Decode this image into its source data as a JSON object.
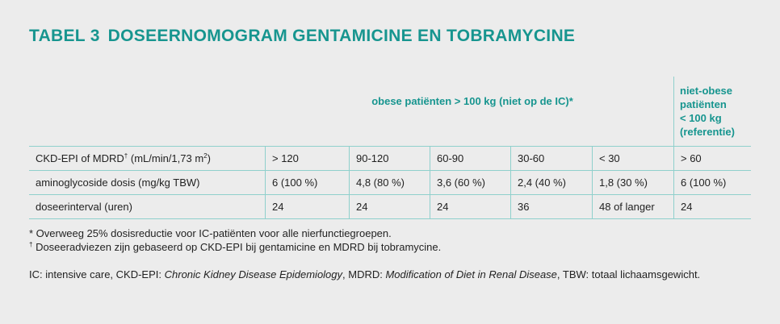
{
  "title": {
    "number": "TABEL 3",
    "text": "DOSEERNOMOGRAM GENTAMICINE EN TOBRAMYCINE"
  },
  "table": {
    "header_obese": "obese patiënten > 100 kg (niet op de IC)*",
    "header_nonobese": [
      "niet-obese",
      "patiënten",
      "< 100 kg",
      "(referentie)"
    ],
    "rows": [
      {
        "label_main": "CKD-EPI of MDRD",
        "label_sup": "†",
        "label_rest": " (mL/min/1,73 m",
        "label_sup2": "2",
        "label_end": ")",
        "cells": [
          "> 120",
          "90-120",
          "60-90",
          "30-60",
          "< 30",
          "> 60"
        ]
      },
      {
        "label": "aminoglycoside dosis (mg/kg TBW)",
        "cells": [
          "6 (100 %)",
          "4,8 (80 %)",
          "3,6 (60 %)",
          "2,4 (40 %)",
          "1,8 (30 %)",
          "6 (100 %)"
        ]
      },
      {
        "label": "doseerinterval (uren)",
        "cells": [
          "24",
          "24",
          "24",
          "36",
          "48 of langer",
          "24"
        ]
      }
    ]
  },
  "notes": {
    "note1": "* Overweeg 25% dosisreductie voor IC-patiënten voor alle nierfunctiegroepen.",
    "note2_sup": "†",
    "note2": " Doseeradviezen zijn gebaseerd op CKD-EPI bij gentamicine en MDRD bij tobramycine.",
    "abbr": [
      {
        "t": "IC: intensive care, CKD-EPI: ",
        "i": false
      },
      {
        "t": "Chronic Kidney Disease Epidemiology",
        "i": true
      },
      {
        "t": ", MDRD: ",
        "i": false
      },
      {
        "t": "Modification of Diet in Renal Disease",
        "i": true
      },
      {
        "t": ", TBW: totaal lichaamsgewicht.",
        "i": false
      }
    ]
  }
}
